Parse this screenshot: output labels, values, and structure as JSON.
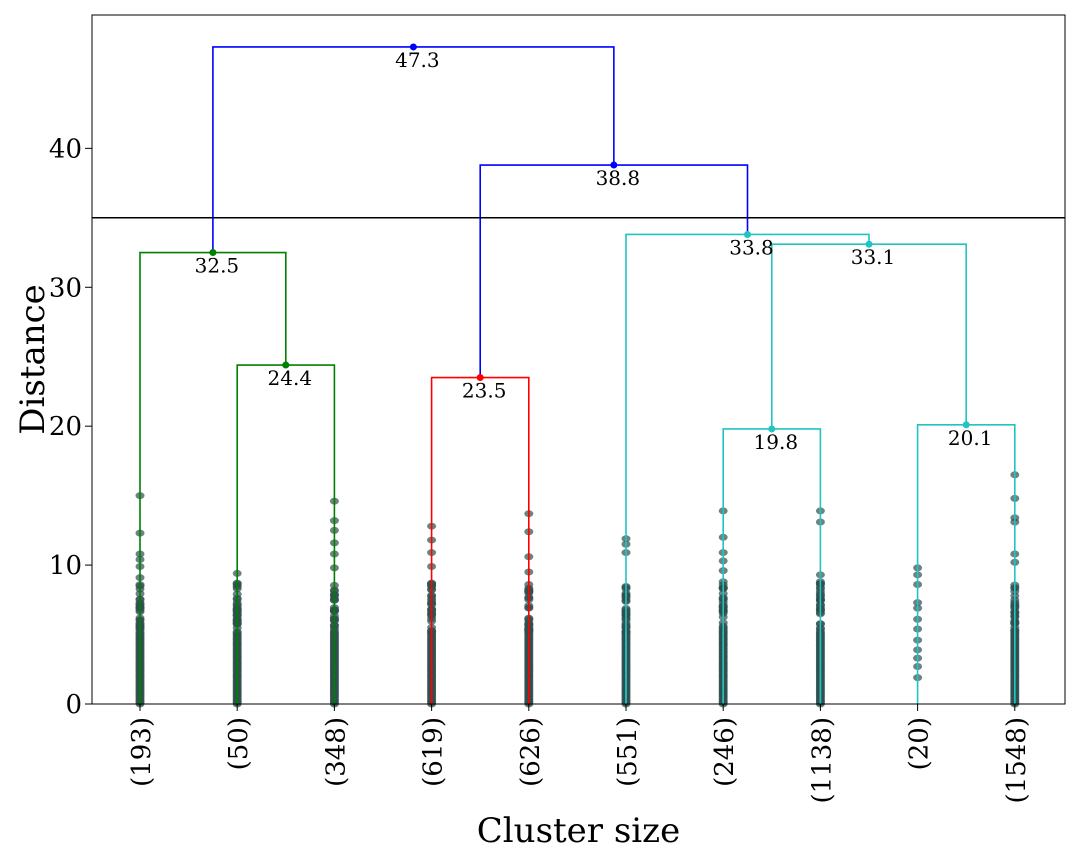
{
  "chart_data": {
    "type": "dendrogram",
    "xlabel": "Cluster size",
    "ylabel": "Distance",
    "ylim": [
      0,
      49.6
    ],
    "yticks": [
      0,
      10,
      20,
      30,
      40
    ],
    "cut_line": 35,
    "leaves": [
      "(193)",
      "(50)",
      "(348)",
      "(619)",
      "(626)",
      "(551)",
      "(246)",
      "(1138)",
      "(20)",
      "(1548)"
    ],
    "colors": {
      "green": "#008000",
      "red": "#ff0000",
      "cyan": "#22c3c3",
      "blue": "#0000ff",
      "cut": "#000000"
    },
    "merges": [
      {
        "left": 1,
        "right": 2,
        "height": 24.4,
        "label": "24.4",
        "color": "green"
      },
      {
        "left": 0,
        "right": 10,
        "height": 32.5,
        "label": "32.5",
        "color": "green"
      },
      {
        "left": 3,
        "right": 4,
        "height": 23.5,
        "label": "23.5",
        "color": "red"
      },
      {
        "left": 6,
        "right": 7,
        "height": 19.8,
        "label": "19.8",
        "color": "cyan"
      },
      {
        "left": 8,
        "right": 9,
        "height": 20.1,
        "label": "20.1",
        "color": "cyan"
      },
      {
        "left": 13,
        "right": 14,
        "height": 33.1,
        "label": "33.1",
        "color": "cyan"
      },
      {
        "left": 5,
        "right": 15,
        "height": 33.8,
        "label": "33.8",
        "color": "cyan"
      },
      {
        "left": 12,
        "right": 16,
        "height": 38.8,
        "label": "38.8",
        "color": "blue"
      },
      {
        "left": 11,
        "right": 17,
        "height": 47.3,
        "label": "47.3",
        "color": "blue"
      }
    ],
    "leaf_points": [
      {
        "leaf": 0,
        "max": 15.0,
        "extras": [
          12.3,
          10.8,
          10.4,
          9.9,
          9.1
        ]
      },
      {
        "leaf": 1,
        "max": 9.4,
        "extras": [
          8.7,
          7.6,
          6.9,
          5.8
        ]
      },
      {
        "leaf": 2,
        "max": 14.6,
        "extras": [
          13.2,
          12.5,
          11.6,
          10.8,
          9.8
        ]
      },
      {
        "leaf": 3,
        "max": 12.8,
        "extras": [
          11.8,
          10.9,
          9.9,
          8.7
        ]
      },
      {
        "leaf": 4,
        "max": 13.7,
        "extras": [
          12.4,
          10.6,
          9.5,
          8.6
        ]
      },
      {
        "leaf": 5,
        "max": 11.9,
        "extras": [
          11.5,
          10.9,
          8.4,
          7.6
        ]
      },
      {
        "leaf": 6,
        "max": 13.9,
        "extras": [
          12.0,
          10.9,
          10.3,
          9.6,
          8.8
        ]
      },
      {
        "leaf": 7,
        "max": 13.9,
        "extras": [
          13.1,
          9.3,
          8.8
        ]
      },
      {
        "leaf": 8,
        "max": 9.8,
        "extras": [
          9.3,
          8.6,
          7.3,
          6.9,
          6.1,
          5.4,
          4.6,
          3.9,
          3.3,
          2.7,
          1.9
        ],
        "sparse": true
      },
      {
        "leaf": 9,
        "max": 16.5,
        "extras": [
          14.8,
          13.4,
          13.1,
          10.8,
          10.2
        ]
      }
    ]
  }
}
